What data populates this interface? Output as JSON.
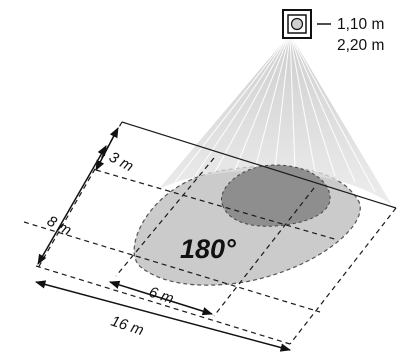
{
  "heights": [
    "1,10 m",
    "2,20 m"
  ],
  "angle": "180°",
  "dimensions": {
    "near_depth": "3 m",
    "far_depth": "8 m",
    "near_width": "6 m",
    "far_width": "16 m"
  },
  "colors": {
    "outer_zone": "#c9c9c9",
    "inner_zone": "#8c8c8c",
    "cone_light": "#e6e6e6",
    "cone_dark": "#b8b8b8",
    "lines": "#1a1a1a"
  }
}
